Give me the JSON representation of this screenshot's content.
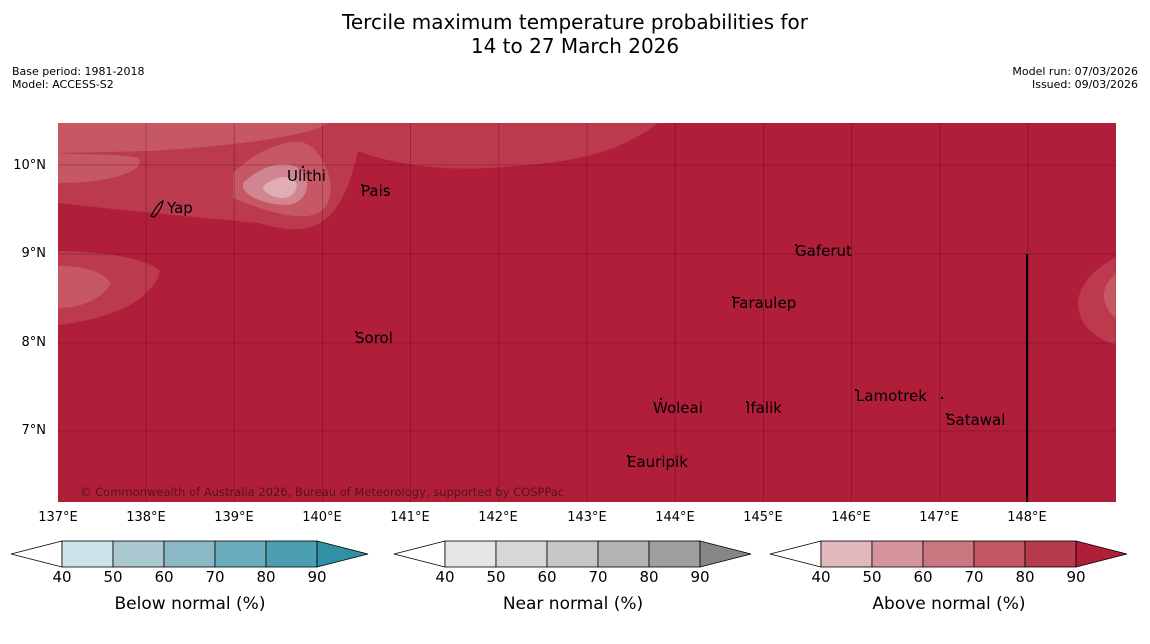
{
  "title": {
    "line1": "Tercile maximum temperature probabilities for",
    "line2": "14 to 27 March 2026"
  },
  "meta": {
    "base_period": "Base period: 1981-2018",
    "model": "Model: ACCESS-S2",
    "model_run": "Model run: 07/03/2026",
    "issued": "Issued: 09/03/2026"
  },
  "map": {
    "lat_labels": [
      "10°N",
      "9°N",
      "8°N",
      "7°N"
    ],
    "lon_labels": [
      "137°E",
      "138°E",
      "139°E",
      "140°E",
      "141°E",
      "142°E",
      "143°E",
      "144°E",
      "145°E",
      "146°E",
      "147°E",
      "148°E"
    ],
    "places": {
      "ulithi": "Ulithi",
      "pais": "Pais",
      "yap": "Yap",
      "gaferut": "Gaferut",
      "faraulep": "Faraulep",
      "sorol": "Sorol",
      "lamotrek": "Lamotrek",
      "woleai": "Woleai",
      "ifalik": "Ifalik",
      "satawal": "Satawal",
      "eauripik": "Eauripik"
    },
    "copyright": "© Commonwealth of Australia 2026, Bureau of Meteorology, supported by COSPPac"
  },
  "legend": {
    "ticks": [
      "40",
      "50",
      "60",
      "70",
      "80",
      "90"
    ],
    "below": {
      "title": "Below normal (%)",
      "colors": [
        "#ffffff",
        "#cce3ea",
        "#a9c8cf",
        "#8ab8c4",
        "#6aaebd",
        "#4b9fb1",
        "#3290a6"
      ]
    },
    "near": {
      "title": "Near normal (%)",
      "colors": [
        "#ffffff",
        "#e6e6e6",
        "#d7d7d7",
        "#c6c6c6",
        "#b3b3b3",
        "#9f9f9f",
        "#868686"
      ]
    },
    "above": {
      "title": "Above normal (%)",
      "colors": [
        "#ffffff",
        "#e3b8bd",
        "#d6939b",
        "#cb7781",
        "#c25663",
        "#b83a4d",
        "#b01e3a"
      ]
    }
  },
  "map_colors": {
    "c90": "#b01e3a",
    "c80": "#bc3a4e",
    "c70": "#c65764",
    "c60": "#d08590",
    "c50": "#e1adb5"
  }
}
